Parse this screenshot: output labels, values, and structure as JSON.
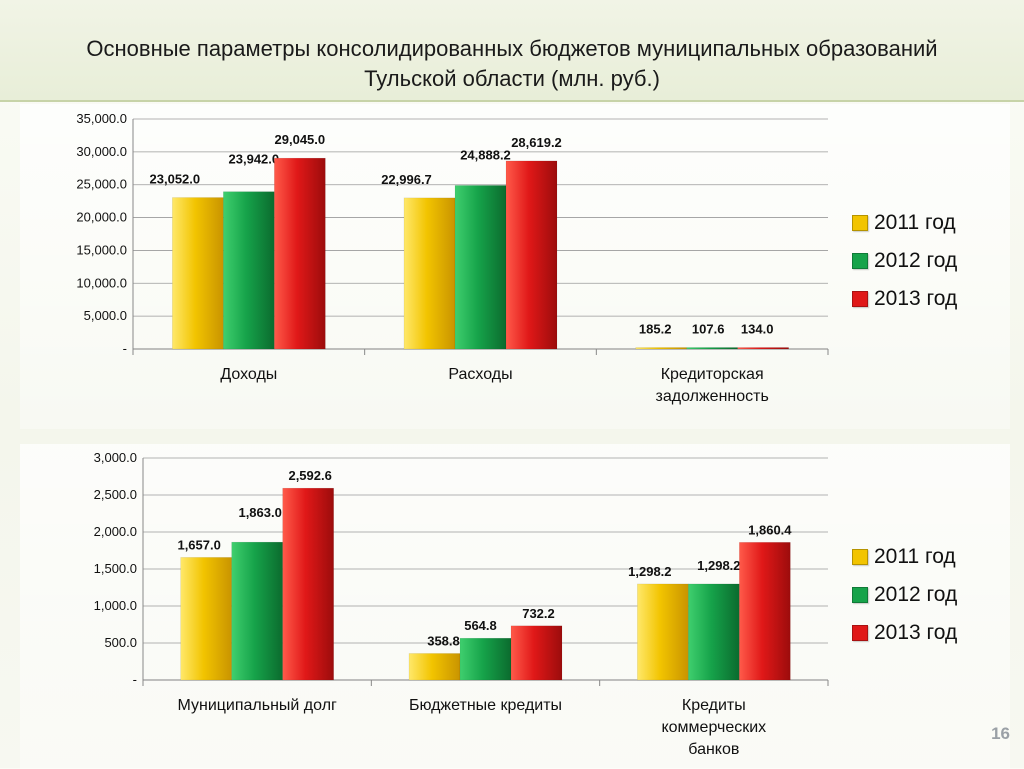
{
  "slide": {
    "title": "Основные параметры консолидированных бюджетов муниципальных образований Тульской области (млн. руб.)",
    "page_number": "16"
  },
  "colors": {
    "2011": "#f2c400",
    "2012": "#16a34a",
    "2013": "#e01818"
  },
  "chart_data": [
    {
      "type": "bar",
      "categories": [
        "Доходы",
        "Расходы",
        "Кредиторская задолженность"
      ],
      "series": [
        {
          "name": "2011 год",
          "values": [
            23052.0,
            22996.7,
            185.2
          ],
          "labels": [
            "23,052.0",
            "22,996.7",
            "185.2"
          ]
        },
        {
          "name": "2012 год",
          "values": [
            23942.0,
            24888.2,
            107.6
          ],
          "labels": [
            "23,942.0",
            "24,888.2",
            "107.6"
          ]
        },
        {
          "name": "2013 год",
          "values": [
            29045.0,
            28619.2,
            134.0
          ],
          "labels": [
            "29,045.0",
            "28,619.2",
            "134.0"
          ]
        }
      ],
      "ylim": [
        0,
        35000
      ],
      "yticks": [
        "-",
        "5,000.0",
        "10,000.0",
        "15,000.0",
        "20,000.0",
        "25,000.0",
        "30,000.0",
        "35,000.0"
      ],
      "grid": true,
      "legend": "right"
    },
    {
      "type": "bar",
      "categories": [
        "Муниципальный долг",
        "Бюджетные кредиты",
        "Кредиты коммерческих банков"
      ],
      "series": [
        {
          "name": "2011 год",
          "values": [
            1657.0,
            358.8,
            1298.2
          ],
          "labels": [
            "1,657.0",
            "358.8",
            "1,298.2"
          ]
        },
        {
          "name": "2012 год",
          "values": [
            1863.0,
            564.8,
            1298.2
          ],
          "labels": [
            "1,863.0",
            "564.8",
            "1,298.2"
          ]
        },
        {
          "name": "2013 год",
          "values": [
            2592.6,
            732.2,
            1860.4
          ],
          "labels": [
            "2,592.6",
            "732.2",
            "1,860.4"
          ]
        }
      ],
      "ylim": [
        0,
        3000
      ],
      "yticks": [
        "-",
        "500.0",
        "1,000.0",
        "1,500.0",
        "2,000.0",
        "2,500.0",
        "3,000.0"
      ],
      "grid": true,
      "legend": "right"
    }
  ]
}
